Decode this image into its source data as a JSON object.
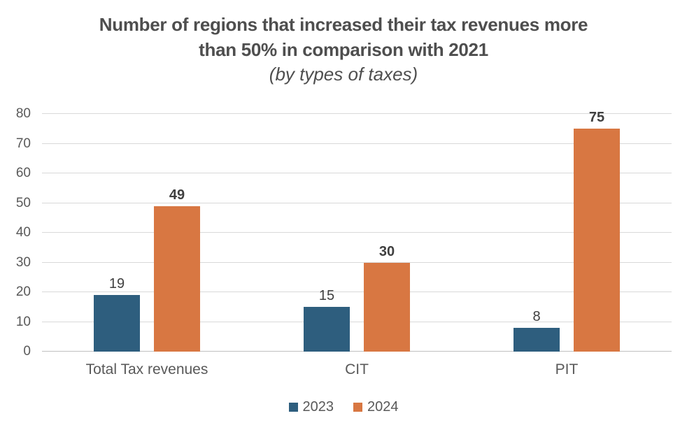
{
  "title": {
    "line1": "Number of regions that increased their tax revenues more",
    "line2": "than 50% in comparison with 2021",
    "subtitle": "(by types of taxes)"
  },
  "chart_data": {
    "type": "bar",
    "title": "Number of regions that increased their tax revenues more than 50% in comparison with 2021",
    "subtitle": "(by types of taxes)",
    "categories": [
      "Total Tax revenues",
      "CIT",
      "PIT"
    ],
    "series": [
      {
        "name": "2023",
        "color": "#2E5E7E",
        "values": [
          19,
          15,
          8
        ],
        "label_weight": "normal"
      },
      {
        "name": "2024",
        "color": "#D87742",
        "values": [
          49,
          30,
          75
        ],
        "label_weight": "bold"
      }
    ],
    "xlabel": "",
    "ylabel": "",
    "ylim": [
      0,
      80
    ],
    "ytick_step": 10,
    "yticks": [
      0,
      10,
      20,
      30,
      40,
      50,
      60,
      70,
      80
    ],
    "grid": true,
    "legend_position": "bottom"
  },
  "colors": {
    "background": "#FFFFFF",
    "title_text": "#4E4E4E",
    "axis_text": "#595959",
    "data_label_text": "#3F3F3F",
    "gridline": "#D9D9D9",
    "baseline": "#BFBFBF",
    "series_2023": "#2E5E7E",
    "series_2024": "#D87742"
  }
}
